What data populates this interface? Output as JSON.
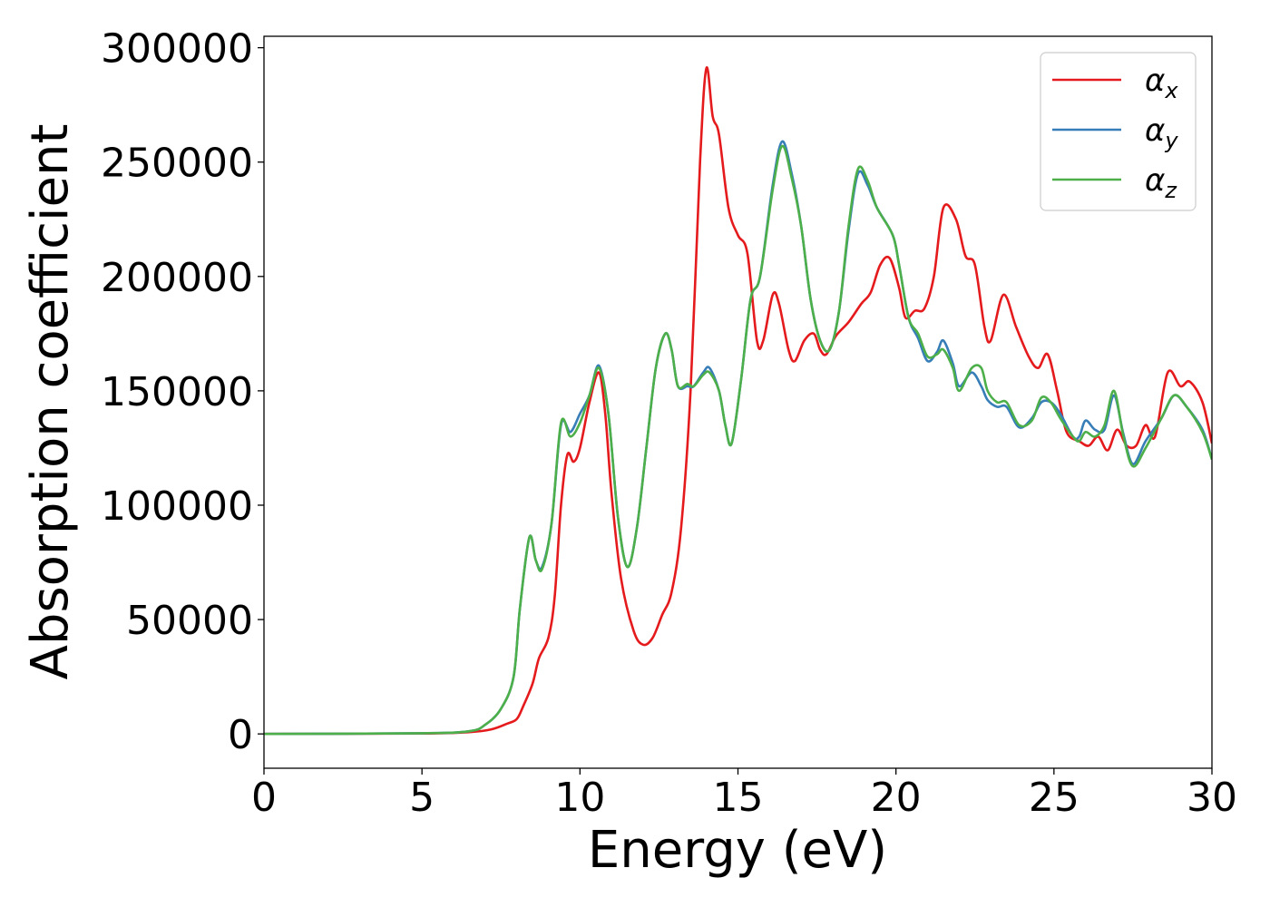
{
  "chart_data": {
    "type": "line",
    "title": "",
    "xlabel": "Energy (eV)",
    "ylabel": "Absorption coefficient",
    "xlim": [
      0,
      30
    ],
    "ylim": [
      -15000,
      305000
    ],
    "xticks": [
      0,
      5,
      10,
      15,
      20,
      25,
      30
    ],
    "xtick_labels": [
      "0",
      "5",
      "10",
      "15",
      "20",
      "25",
      "30"
    ],
    "yticks": [
      0,
      50000,
      100000,
      150000,
      200000,
      250000,
      300000
    ],
    "ytick_labels": [
      "0",
      "50000",
      "100000",
      "150000",
      "200000",
      "250000",
      "300000"
    ],
    "grid": false,
    "legend_position": "top-right",
    "series": [
      {
        "name": "α_x",
        "label_main": "α",
        "label_sub": "x",
        "color": "#e41a1c",
        "points": [
          [
            0,
            0
          ],
          [
            5,
            200
          ],
          [
            6.5,
            800
          ],
          [
            7.2,
            2000
          ],
          [
            7.7,
            4500
          ],
          [
            8.0,
            6500
          ],
          [
            8.2,
            12000
          ],
          [
            8.5,
            22000
          ],
          [
            8.7,
            33000
          ],
          [
            9.0,
            42000
          ],
          [
            9.2,
            60000
          ],
          [
            9.4,
            100000
          ],
          [
            9.6,
            122000
          ],
          [
            9.8,
            119000
          ],
          [
            10.0,
            125000
          ],
          [
            10.3,
            145000
          ],
          [
            10.6,
            158000
          ],
          [
            10.8,
            140000
          ],
          [
            11.0,
            105000
          ],
          [
            11.3,
            68000
          ],
          [
            11.7,
            45000
          ],
          [
            12.0,
            39000
          ],
          [
            12.3,
            42000
          ],
          [
            12.6,
            52000
          ],
          [
            12.9,
            62000
          ],
          [
            13.2,
            90000
          ],
          [
            13.5,
            150000
          ],
          [
            13.8,
            250000
          ],
          [
            14.0,
            291000
          ],
          [
            14.2,
            270000
          ],
          [
            14.4,
            262000
          ],
          [
            14.7,
            230000
          ],
          [
            15.0,
            218000
          ],
          [
            15.3,
            210000
          ],
          [
            15.6,
            172000
          ],
          [
            15.8,
            172000
          ],
          [
            16.1,
            192000
          ],
          [
            16.3,
            188000
          ],
          [
            16.6,
            168000
          ],
          [
            16.8,
            163000
          ],
          [
            17.1,
            172000
          ],
          [
            17.4,
            175000
          ],
          [
            17.6,
            168000
          ],
          [
            17.8,
            166000
          ],
          [
            18.1,
            174000
          ],
          [
            18.5,
            180000
          ],
          [
            18.9,
            188000
          ],
          [
            19.2,
            193000
          ],
          [
            19.5,
            205000
          ],
          [
            19.8,
            208000
          ],
          [
            20.1,
            195000
          ],
          [
            20.3,
            182000
          ],
          [
            20.6,
            185000
          ],
          [
            20.9,
            186000
          ],
          [
            21.2,
            200000
          ],
          [
            21.5,
            230000
          ],
          [
            21.9,
            225000
          ],
          [
            22.2,
            209000
          ],
          [
            22.5,
            205000
          ],
          [
            22.8,
            178000
          ],
          [
            23.0,
            172000
          ],
          [
            23.4,
            192000
          ],
          [
            23.8,
            178000
          ],
          [
            24.2,
            165000
          ],
          [
            24.5,
            160000
          ],
          [
            24.8,
            166000
          ],
          [
            25.1,
            150000
          ],
          [
            25.4,
            132000
          ],
          [
            25.8,
            128000
          ],
          [
            26.1,
            126000
          ],
          [
            26.4,
            130000
          ],
          [
            26.7,
            124000
          ],
          [
            27.0,
            133000
          ],
          [
            27.3,
            126000
          ],
          [
            27.6,
            126000
          ],
          [
            27.9,
            135000
          ],
          [
            28.2,
            130000
          ],
          [
            28.6,
            158000
          ],
          [
            29.0,
            152000
          ],
          [
            29.3,
            154000
          ],
          [
            29.7,
            145000
          ],
          [
            30.0,
            127000
          ]
        ]
      },
      {
        "name": "α_y",
        "label_main": "α",
        "label_sub": "y",
        "color": "#377eb8",
        "points": [
          [
            0,
            0
          ],
          [
            5,
            300
          ],
          [
            6.5,
            1200
          ],
          [
            7.0,
            4000
          ],
          [
            7.5,
            11000
          ],
          [
            7.9,
            25000
          ],
          [
            8.1,
            55000
          ],
          [
            8.4,
            86000
          ],
          [
            8.6,
            76000
          ],
          [
            8.8,
            73000
          ],
          [
            9.1,
            92000
          ],
          [
            9.4,
            135000
          ],
          [
            9.7,
            132000
          ],
          [
            10.0,
            140000
          ],
          [
            10.3,
            148000
          ],
          [
            10.6,
            161000
          ],
          [
            10.9,
            140000
          ],
          [
            11.2,
            95000
          ],
          [
            11.5,
            73000
          ],
          [
            11.8,
            90000
          ],
          [
            12.1,
            125000
          ],
          [
            12.4,
            160000
          ],
          [
            12.7,
            175000
          ],
          [
            12.9,
            168000
          ],
          [
            13.1,
            152000
          ],
          [
            13.4,
            152000
          ],
          [
            13.6,
            152000
          ],
          [
            13.9,
            158000
          ],
          [
            14.1,
            160000
          ],
          [
            14.4,
            150000
          ],
          [
            14.6,
            135000
          ],
          [
            14.8,
            127000
          ],
          [
            15.1,
            155000
          ],
          [
            15.4,
            190000
          ],
          [
            15.7,
            200000
          ],
          [
            16.1,
            240000
          ],
          [
            16.4,
            259000
          ],
          [
            16.7,
            245000
          ],
          [
            17.0,
            222000
          ],
          [
            17.3,
            190000
          ],
          [
            17.6,
            172000
          ],
          [
            17.9,
            168000
          ],
          [
            18.2,
            185000
          ],
          [
            18.5,
            220000
          ],
          [
            18.8,
            245000
          ],
          [
            19.1,
            240000
          ],
          [
            19.4,
            230000
          ],
          [
            19.9,
            218000
          ],
          [
            20.1,
            205000
          ],
          [
            20.4,
            182000
          ],
          [
            20.7,
            173000
          ],
          [
            21.0,
            163000
          ],
          [
            21.3,
            167000
          ],
          [
            21.5,
            172000
          ],
          [
            21.8,
            162000
          ],
          [
            22.0,
            152000
          ],
          [
            22.4,
            158000
          ],
          [
            22.7,
            152000
          ],
          [
            22.9,
            146000
          ],
          [
            23.2,
            143000
          ],
          [
            23.5,
            143000
          ],
          [
            23.9,
            134000
          ],
          [
            24.3,
            138000
          ],
          [
            24.6,
            145000
          ],
          [
            24.9,
            145000
          ],
          [
            25.2,
            140000
          ],
          [
            25.6,
            130000
          ],
          [
            25.8,
            130000
          ],
          [
            26.0,
            137000
          ],
          [
            26.3,
            133000
          ],
          [
            26.6,
            133000
          ],
          [
            26.9,
            148000
          ],
          [
            27.2,
            131000
          ],
          [
            27.5,
            118000
          ],
          [
            27.9,
            128000
          ],
          [
            28.4,
            138000
          ],
          [
            28.8,
            148000
          ],
          [
            29.2,
            143000
          ],
          [
            29.7,
            133000
          ],
          [
            30.0,
            120000
          ]
        ]
      },
      {
        "name": "α_z",
        "label_main": "α",
        "label_sub": "z",
        "color": "#4daf4a",
        "points": [
          [
            0,
            0
          ],
          [
            5,
            300
          ],
          [
            6.5,
            1200
          ],
          [
            7.0,
            4000
          ],
          [
            7.5,
            11000
          ],
          [
            7.9,
            25000
          ],
          [
            8.1,
            55000
          ],
          [
            8.4,
            86000
          ],
          [
            8.6,
            76000
          ],
          [
            8.8,
            72000
          ],
          [
            9.1,
            92000
          ],
          [
            9.4,
            136000
          ],
          [
            9.7,
            130000
          ],
          [
            10.0,
            136000
          ],
          [
            10.3,
            148000
          ],
          [
            10.6,
            160000
          ],
          [
            10.9,
            140000
          ],
          [
            11.2,
            95000
          ],
          [
            11.5,
            73000
          ],
          [
            11.8,
            90000
          ],
          [
            12.1,
            125000
          ],
          [
            12.4,
            160000
          ],
          [
            12.7,
            175000
          ],
          [
            12.9,
            168000
          ],
          [
            13.1,
            152000
          ],
          [
            13.4,
            153000
          ],
          [
            13.6,
            152000
          ],
          [
            13.9,
            157000
          ],
          [
            14.1,
            158000
          ],
          [
            14.4,
            150000
          ],
          [
            14.6,
            135000
          ],
          [
            14.8,
            127000
          ],
          [
            15.1,
            155000
          ],
          [
            15.4,
            190000
          ],
          [
            15.7,
            200000
          ],
          [
            16.1,
            238000
          ],
          [
            16.4,
            257000
          ],
          [
            16.7,
            243000
          ],
          [
            17.0,
            222000
          ],
          [
            17.3,
            190000
          ],
          [
            17.6,
            172000
          ],
          [
            17.9,
            168000
          ],
          [
            18.2,
            185000
          ],
          [
            18.5,
            222000
          ],
          [
            18.8,
            247000
          ],
          [
            19.1,
            242000
          ],
          [
            19.4,
            230000
          ],
          [
            19.9,
            218000
          ],
          [
            20.1,
            205000
          ],
          [
            20.4,
            182000
          ],
          [
            20.7,
            175000
          ],
          [
            21.0,
            165000
          ],
          [
            21.3,
            166000
          ],
          [
            21.5,
            168000
          ],
          [
            21.8,
            160000
          ],
          [
            22.0,
            150000
          ],
          [
            22.4,
            160000
          ],
          [
            22.7,
            160000
          ],
          [
            22.9,
            150000
          ],
          [
            23.2,
            145000
          ],
          [
            23.5,
            145000
          ],
          [
            23.9,
            135000
          ],
          [
            24.3,
            137000
          ],
          [
            24.6,
            147000
          ],
          [
            24.9,
            145000
          ],
          [
            25.2,
            138000
          ],
          [
            25.6,
            130000
          ],
          [
            25.8,
            128000
          ],
          [
            26.0,
            132000
          ],
          [
            26.3,
            130000
          ],
          [
            26.6,
            135000
          ],
          [
            26.9,
            150000
          ],
          [
            27.2,
            130000
          ],
          [
            27.5,
            117000
          ],
          [
            27.9,
            125000
          ],
          [
            28.4,
            138000
          ],
          [
            28.8,
            148000
          ],
          [
            29.2,
            143000
          ],
          [
            29.7,
            132000
          ],
          [
            30.0,
            120000
          ]
        ]
      }
    ]
  }
}
